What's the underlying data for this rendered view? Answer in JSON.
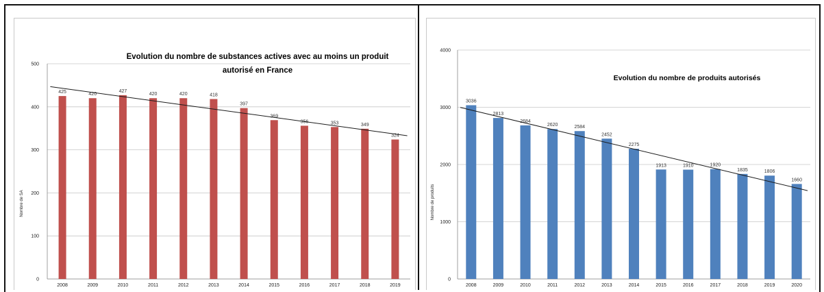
{
  "chart_data": [
    {
      "type": "bar",
      "title_lines": [
        "Evolution du nombre de substances actives avec au moins un produit",
        "autorisé en France"
      ],
      "ylabel": "Nombre de SA",
      "categories": [
        "2008",
        "2009",
        "2010",
        "2011",
        "2012",
        "2013",
        "2014",
        "2015",
        "2016",
        "2017",
        "2018",
        "2019"
      ],
      "values": [
        425,
        420,
        427,
        420,
        420,
        418,
        397,
        369,
        356,
        353,
        349,
        324
      ],
      "value_labels": [
        "425",
        "420",
        "427",
        "420",
        "420",
        "418",
        "397",
        "369",
        "356",
        "353",
        "349",
        "324"
      ],
      "yticks": [
        "0",
        "100",
        "200",
        "300",
        "400",
        "500"
      ],
      "ylim": [
        0,
        500
      ],
      "grid": true,
      "trendline": true,
      "color": "#c0504d"
    },
    {
      "type": "bar",
      "title_lines": [
        "Evolution du nombre de produits autorisés"
      ],
      "ylabel": "Nombre de produits",
      "categories": [
        "2008",
        "2009",
        "2010",
        "2011",
        "2012",
        "2013",
        "2014",
        "2015",
        "2016",
        "2017",
        "2018",
        "2019",
        "2020"
      ],
      "values": [
        3036,
        2813,
        2684,
        2620,
        2584,
        2452,
        2275,
        1913,
        1910,
        1920,
        1835,
        1806,
        1660
      ],
      "value_labels": [
        "3036",
        "2813",
        "2684",
        "2620",
        "2584",
        "2452",
        "2275",
        "1913",
        "1910",
        "1920",
        "1835",
        "1806",
        "1660"
      ],
      "yticks": [
        "0",
        "1000",
        "2000",
        "3000",
        "4000"
      ],
      "ylim": [
        0,
        4000
      ],
      "grid": true,
      "trendline": true,
      "color": "#4f81bd"
    }
  ]
}
